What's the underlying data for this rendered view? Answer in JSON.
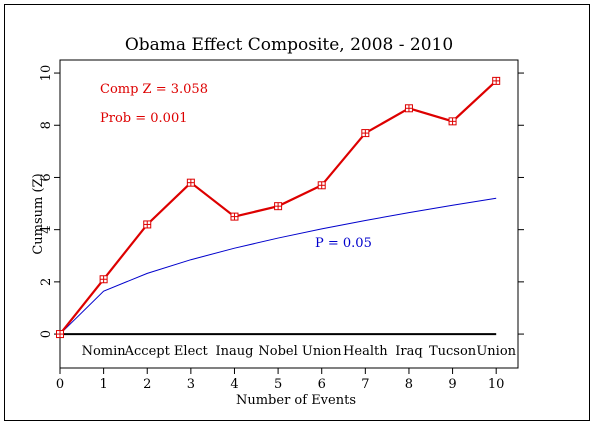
{
  "chart_data": {
    "type": "line",
    "title": "Obama Effect Composite, 2008 - 2010",
    "xlabel": "Number of Events",
    "ylabel": "Cumsum (Z)",
    "xlim": [
      0,
      10.5
    ],
    "ylim": [
      -1.3,
      10.5
    ],
    "x_ticks": [
      0,
      1,
      2,
      3,
      4,
      5,
      6,
      7,
      8,
      9,
      10
    ],
    "y_ticks": [
      0,
      2,
      4,
      6,
      8,
      10
    ],
    "event_labels": [
      "Nomin",
      "Accept",
      "Elect",
      "Inaug",
      "Nobel",
      "Union",
      "Health",
      "Iraq",
      "Tucson",
      "Union"
    ],
    "grid": false,
    "series": [
      {
        "name": "",
        "color": "#dd0000",
        "marker": "boxed-plus",
        "x": [
          0,
          1,
          2,
          3,
          4,
          5,
          6,
          7,
          8,
          9,
          10
        ],
        "y": [
          0,
          2.1,
          4.2,
          5.8,
          4.5,
          4.9,
          5.7,
          7.7,
          8.65,
          8.15,
          9.7
        ]
      },
      {
        "name": "",
        "color": "#0000cc",
        "x": [
          0,
          1,
          2,
          3,
          4,
          5,
          6,
          7,
          8,
          9,
          10
        ],
        "y": [
          0,
          1.645,
          2.326,
          2.849,
          3.29,
          3.678,
          4.029,
          4.352,
          4.652,
          4.935,
          5.202
        ]
      }
    ],
    "baseline": {
      "y": 0,
      "color": "#000000"
    },
    "annotations": [
      {
        "text": "Comp Z = 3.058",
        "color": "#dd0000"
      },
      {
        "text": "Prob = 0.001",
        "color": "#dd0000"
      },
      {
        "text": "P = 0.05",
        "color": "#0000cc"
      }
    ]
  }
}
